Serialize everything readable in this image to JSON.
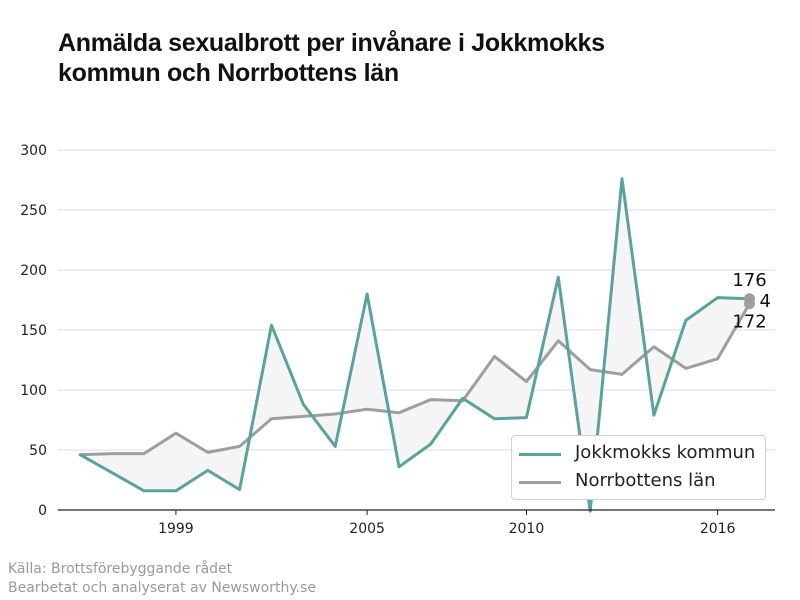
{
  "title_line1": "Anmälda sexualbrott per invånare i Jokkmokks",
  "title_line2": "kommun och Norrbottens län",
  "source_line1": "Källa: Brottsförebyggande rådet",
  "source_line2": "Bearbetat och analyserat av Newsworthy.se",
  "colors": {
    "jokkmokk": "#5ba39a",
    "norrbotten": "#9e9e9e",
    "fill": "#f5f5f5",
    "grid": "#dddddd"
  },
  "chart_data": {
    "type": "line",
    "title": "Anmälda sexualbrott per invånare i Jokkmokks kommun och Norrbottens län",
    "x": [
      1996,
      1997,
      1998,
      1999,
      2000,
      2001,
      2002,
      2003,
      2004,
      2005,
      2006,
      2007,
      2008,
      2009,
      2010,
      2011,
      2012,
      2013,
      2014,
      2015,
      2016,
      2017
    ],
    "xticks": [
      1999,
      2005,
      2010,
      2016
    ],
    "xlim": [
      1995.3,
      2017.8
    ],
    "yticks": [
      0,
      50,
      100,
      150,
      200,
      250,
      300
    ],
    "ylim": [
      0,
      300
    ],
    "grid": true,
    "legend": "bottom-right",
    "series": [
      {
        "name": "Jokkmokks kommun",
        "values": [
          46,
          31,
          16,
          16,
          33,
          17,
          154,
          88,
          53,
          180,
          36,
          55,
          93,
          76,
          77,
          194,
          -1,
          276,
          79,
          158,
          177,
          176
        ]
      },
      {
        "name": "Norrbottens län",
        "values": [
          46,
          47,
          47,
          64,
          48,
          53,
          76,
          78,
          80,
          84,
          81,
          92,
          91,
          128,
          107,
          141,
          117,
          113,
          136,
          118,
          126,
          172
        ]
      }
    ],
    "end_labels": {
      "top": "176",
      "middle": "4",
      "bottom": "172"
    }
  }
}
